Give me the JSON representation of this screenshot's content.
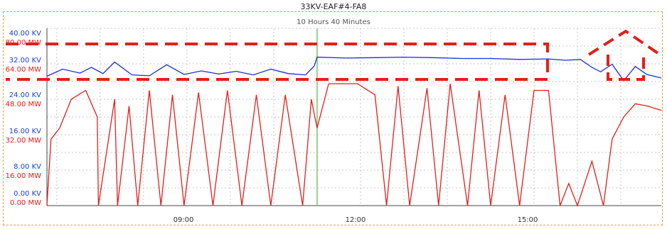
{
  "chart_data": {
    "type": "line",
    "title": "33KV-EAF#4-FA8",
    "subtitle": "10 Hours 40 Minutes",
    "y_left_kv_ticks": [
      "40.00 KV",
      "32.00 KV",
      "24.00 KV",
      "16.00 KV",
      "8.00 KV",
      "0.00 KV"
    ],
    "y_left_mw_ticks": [
      "80.00 MW",
      "64.00 MW",
      "48.00 MW",
      "32.00 MW",
      "16.00 MW",
      "0.00 MW"
    ],
    "x_ticks": [
      "09:00",
      "12:00",
      "15:00"
    ],
    "grid": true,
    "ylim_kv": [
      0,
      40
    ],
    "ylim_mw": [
      0,
      80
    ],
    "series": [
      {
        "name": "KV",
        "color": "#1a2fd1",
        "x": [
          7.33,
          7.6,
          7.9,
          8.1,
          8.3,
          8.5,
          8.8,
          9.1,
          9.4,
          9.7,
          10.0,
          10.3,
          10.6,
          10.9,
          11.2,
          11.5,
          11.8,
          11.95,
          12.0,
          12.5,
          13.0,
          13.5,
          14.0,
          14.5,
          15.0,
          15.5,
          16.0,
          16.3,
          16.55,
          16.75,
          16.9,
          17.1,
          17.3,
          17.5,
          17.7,
          17.95
        ],
        "values": [
          29.2,
          30.8,
          29.9,
          31.2,
          29.8,
          32.4,
          29.5,
          29.3,
          31.8,
          29.6,
          30.4,
          29.7,
          30.3,
          29.5,
          30.8,
          29.8,
          29.5,
          31.5,
          33.5,
          33.3,
          33.4,
          33.5,
          33.4,
          33.2,
          33.2,
          33.0,
          33.1,
          32.8,
          33.0,
          31.2,
          30.2,
          31.9,
          28.2,
          31.4,
          29.6,
          28.8
        ]
      },
      {
        "name": "MW",
        "color": "#e0201c",
        "x": [
          7.33,
          7.4,
          7.55,
          7.75,
          8.0,
          8.2,
          8.22,
          8.5,
          8.55,
          8.75,
          8.9,
          9.1,
          9.3,
          9.5,
          9.7,
          9.95,
          10.2,
          10.45,
          10.7,
          10.95,
          11.2,
          11.45,
          11.75,
          11.9,
          12.0,
          12.2,
          12.7,
          13.0,
          13.2,
          13.4,
          13.6,
          13.9,
          14.1,
          14.3,
          14.6,
          14.8,
          15.0,
          15.25,
          15.5,
          15.75,
          16.0,
          16.2,
          16.35,
          16.5,
          16.75,
          16.95,
          17.1,
          17.3,
          17.5,
          17.7,
          17.95
        ],
        "values": [
          0,
          30,
          35,
          48,
          52,
          40,
          0,
          48,
          0,
          45,
          0,
          52,
          0,
          50,
          0,
          51,
          0,
          52,
          0,
          50,
          0,
          50,
          0,
          48,
          35,
          55,
          55,
          50,
          0,
          54,
          0,
          53,
          0,
          55,
          0,
          52,
          0,
          50,
          0,
          52,
          52,
          0,
          10,
          0,
          20,
          0,
          30,
          40,
          46,
          45,
          43
        ]
      }
    ],
    "annotations": [
      "green vertical marker at 12:00",
      "red dashed highlight boxes"
    ]
  }
}
